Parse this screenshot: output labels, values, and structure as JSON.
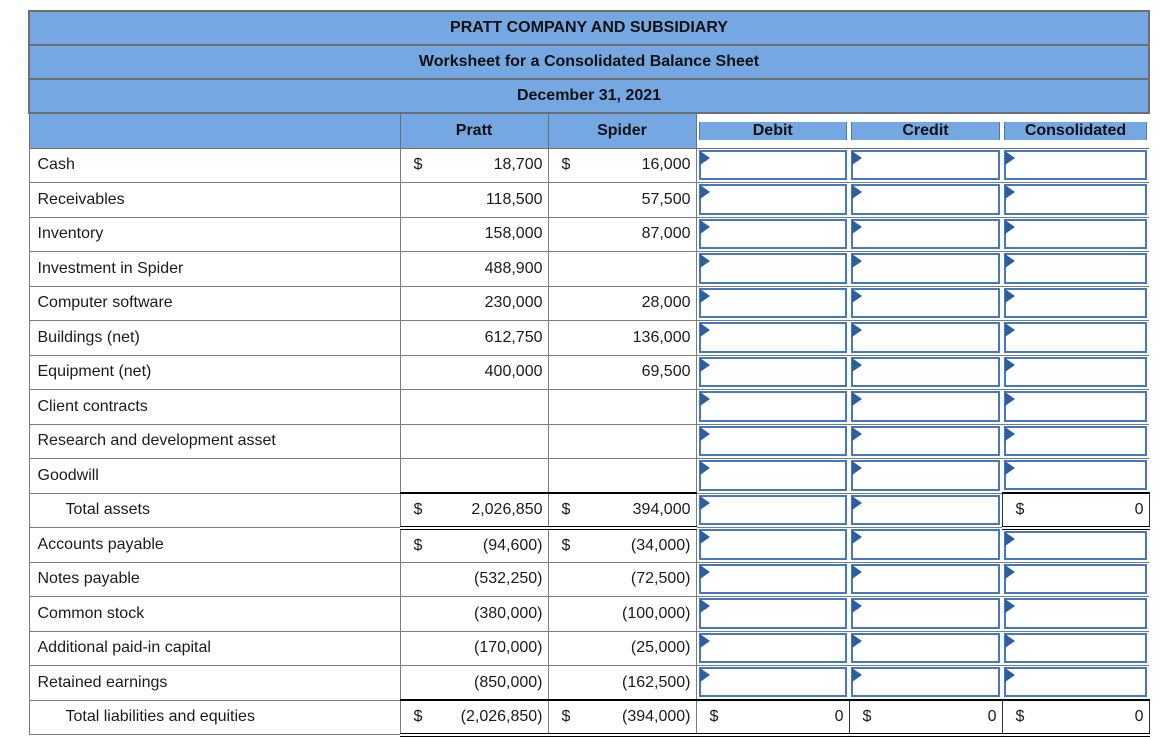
{
  "header": {
    "line1": "PRATT COMPANY AND SUBSIDIARY",
    "line2": "Worksheet for a Consolidated Balance Sheet",
    "line3": "December 31, 2021"
  },
  "columns": {
    "account": "",
    "pratt": "Pratt",
    "spider": "Spider",
    "debit": "Debit",
    "credit": "Credit",
    "consolidated": "Consolidated"
  },
  "colors": {
    "header_blue": "#75A8E2",
    "input_border_blue": "#4678BD",
    "cell_marker_blue": "#2C5F9F",
    "grid_gray": "#7C7C7C",
    "total_border_black": "#000000"
  },
  "rows": [
    {
      "label": "Cash",
      "indent": false,
      "pratt": {
        "dollar": "$",
        "value": "18,700",
        "total": false
      },
      "spider": {
        "dollar": "$",
        "value": "16,000",
        "total": false
      },
      "debit": {
        "kind": "input"
      },
      "credit": {
        "kind": "input"
      },
      "consolidated": {
        "kind": "input"
      }
    },
    {
      "label": "Receivables",
      "indent": false,
      "pratt": {
        "dollar": "",
        "value": "118,500",
        "total": false
      },
      "spider": {
        "dollar": "",
        "value": "57,500",
        "total": false
      },
      "debit": {
        "kind": "input"
      },
      "credit": {
        "kind": "input"
      },
      "consolidated": {
        "kind": "input"
      }
    },
    {
      "label": "Inventory",
      "indent": false,
      "pratt": {
        "dollar": "",
        "value": "158,000",
        "total": false
      },
      "spider": {
        "dollar": "",
        "value": "87,000",
        "total": false
      },
      "debit": {
        "kind": "input"
      },
      "credit": {
        "kind": "input"
      },
      "consolidated": {
        "kind": "input"
      }
    },
    {
      "label": "Investment in Spider",
      "indent": false,
      "pratt": {
        "dollar": "",
        "value": "488,900",
        "total": false
      },
      "spider": {
        "dollar": "",
        "value": "",
        "total": false
      },
      "debit": {
        "kind": "input"
      },
      "credit": {
        "kind": "input"
      },
      "consolidated": {
        "kind": "input"
      }
    },
    {
      "label": "Computer software",
      "indent": false,
      "pratt": {
        "dollar": "",
        "value": "230,000",
        "total": false
      },
      "spider": {
        "dollar": "",
        "value": "28,000",
        "total": false
      },
      "debit": {
        "kind": "input"
      },
      "credit": {
        "kind": "input"
      },
      "consolidated": {
        "kind": "input"
      }
    },
    {
      "label": "Buildings (net)",
      "indent": false,
      "pratt": {
        "dollar": "",
        "value": "612,750",
        "total": false
      },
      "spider": {
        "dollar": "",
        "value": "136,000",
        "total": false
      },
      "debit": {
        "kind": "input"
      },
      "credit": {
        "kind": "input"
      },
      "consolidated": {
        "kind": "input"
      }
    },
    {
      "label": "Equipment (net)",
      "indent": false,
      "pratt": {
        "dollar": "",
        "value": "400,000",
        "total": false
      },
      "spider": {
        "dollar": "",
        "value": "69,500",
        "total": false
      },
      "debit": {
        "kind": "input"
      },
      "credit": {
        "kind": "input"
      },
      "consolidated": {
        "kind": "input"
      }
    },
    {
      "label": "Client contracts",
      "indent": false,
      "pratt": {
        "dollar": "",
        "value": "",
        "total": false
      },
      "spider": {
        "dollar": "",
        "value": "",
        "total": false
      },
      "debit": {
        "kind": "input"
      },
      "credit": {
        "kind": "input"
      },
      "consolidated": {
        "kind": "input"
      }
    },
    {
      "label": "Research and development asset",
      "indent": false,
      "pratt": {
        "dollar": "",
        "value": "",
        "total": false
      },
      "spider": {
        "dollar": "",
        "value": "",
        "total": false
      },
      "debit": {
        "kind": "input"
      },
      "credit": {
        "kind": "input"
      },
      "consolidated": {
        "kind": "input"
      }
    },
    {
      "label": "Goodwill",
      "indent": false,
      "pratt": {
        "dollar": "",
        "value": "",
        "total": false
      },
      "spider": {
        "dollar": "",
        "value": "",
        "total": false
      },
      "debit": {
        "kind": "input"
      },
      "credit": {
        "kind": "input"
      },
      "consolidated": {
        "kind": "input"
      }
    },
    {
      "label": "Total assets",
      "indent": true,
      "pratt": {
        "dollar": "$",
        "value": "2,026,850",
        "total": true
      },
      "spider": {
        "dollar": "$",
        "value": "394,000",
        "total": true
      },
      "debit": {
        "kind": "input"
      },
      "credit": {
        "kind": "input"
      },
      "consolidated": {
        "kind": "total",
        "dollar": "$",
        "value": "0"
      }
    },
    {
      "label": "Accounts payable",
      "indent": false,
      "pratt": {
        "dollar": "$",
        "value": "(94,600)",
        "total": false
      },
      "spider": {
        "dollar": "$",
        "value": "(34,000)",
        "total": false
      },
      "debit": {
        "kind": "input"
      },
      "credit": {
        "kind": "input"
      },
      "consolidated": {
        "kind": "input"
      }
    },
    {
      "label": "Notes payable",
      "indent": false,
      "pratt": {
        "dollar": "",
        "value": "(532,250)",
        "total": false
      },
      "spider": {
        "dollar": "",
        "value": "(72,500)",
        "total": false
      },
      "debit": {
        "kind": "input"
      },
      "credit": {
        "kind": "input"
      },
      "consolidated": {
        "kind": "input"
      }
    },
    {
      "label": "Common stock",
      "indent": false,
      "pratt": {
        "dollar": "",
        "value": "(380,000)",
        "total": false
      },
      "spider": {
        "dollar": "",
        "value": "(100,000)",
        "total": false
      },
      "debit": {
        "kind": "input"
      },
      "credit": {
        "kind": "input"
      },
      "consolidated": {
        "kind": "input"
      }
    },
    {
      "label": "Additional paid-in capital",
      "indent": false,
      "pratt": {
        "dollar": "",
        "value": "(170,000)",
        "total": false
      },
      "spider": {
        "dollar": "",
        "value": "(25,000)",
        "total": false
      },
      "debit": {
        "kind": "input"
      },
      "credit": {
        "kind": "input"
      },
      "consolidated": {
        "kind": "input"
      }
    },
    {
      "label": "Retained earnings",
      "indent": false,
      "pratt": {
        "dollar": "",
        "value": "(850,000)",
        "total": false
      },
      "spider": {
        "dollar": "",
        "value": "(162,500)",
        "total": false
      },
      "debit": {
        "kind": "input"
      },
      "credit": {
        "kind": "input"
      },
      "consolidated": {
        "kind": "input"
      }
    },
    {
      "label": "Total liabilities and equities",
      "indent": true,
      "pratt": {
        "dollar": "$",
        "value": "(2,026,850)",
        "total": true
      },
      "spider": {
        "dollar": "$",
        "value": "(394,000)",
        "total": true
      },
      "debit": {
        "kind": "total",
        "dollar": "$",
        "value": "0"
      },
      "credit": {
        "kind": "total",
        "dollar": "$",
        "value": "0"
      },
      "consolidated": {
        "kind": "total",
        "dollar": "$",
        "value": "0"
      }
    }
  ]
}
